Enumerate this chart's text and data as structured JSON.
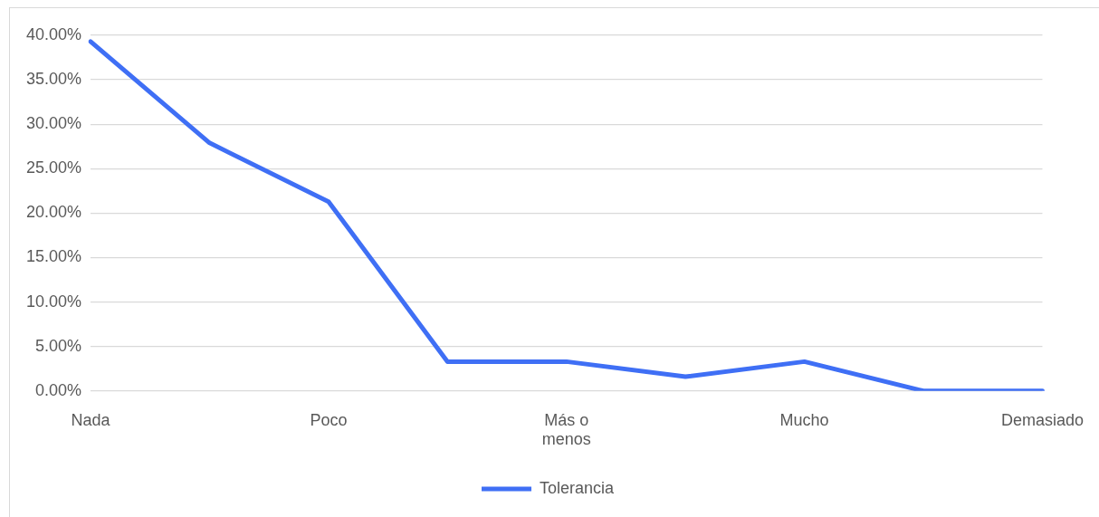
{
  "chart_data": {
    "type": "line",
    "categories": [
      "Nada",
      null,
      "Poco",
      null,
      "Más o menos",
      null,
      "Mucho",
      null,
      "Demasiado"
    ],
    "series": [
      {
        "name": "Tolerancia",
        "color": "#3f6ff5",
        "values": [
          39.3,
          27.9,
          21.3,
          3.3,
          3.3,
          1.6,
          3.3,
          0,
          0
        ]
      }
    ],
    "ylim": [
      0,
      40
    ],
    "yticks": [
      {
        "value": 0,
        "label": "0.00%"
      },
      {
        "value": 5,
        "label": "5.00%"
      },
      {
        "value": 10,
        "label": "10.00%"
      },
      {
        "value": 15,
        "label": "15.00%"
      },
      {
        "value": 20,
        "label": "20.00%"
      },
      {
        "value": 25,
        "label": "25.00%"
      },
      {
        "value": 30,
        "label": "30.00%"
      },
      {
        "value": 35,
        "label": "35.00%"
      },
      {
        "value": 40,
        "label": "40.00%"
      }
    ],
    "grid": "y",
    "legend": "bottom",
    "marker": "none",
    "line_style": "solid"
  }
}
